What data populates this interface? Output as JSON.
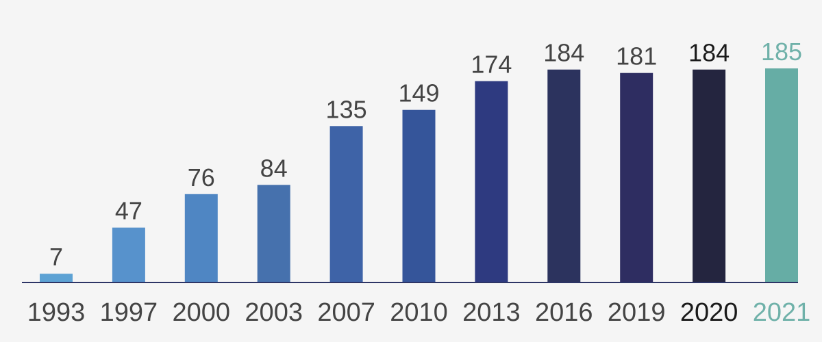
{
  "chart_data": {
    "type": "bar",
    "categories": [
      "1993",
      "1997",
      "2000",
      "2003",
      "2007",
      "2010",
      "2013",
      "2016",
      "2019",
      "2020",
      "2021"
    ],
    "values": [
      7,
      47,
      76,
      84,
      135,
      149,
      174,
      184,
      181,
      184,
      185
    ],
    "data_labels": [
      "7",
      "47",
      "76",
      "84",
      "135",
      "149",
      "174",
      "184",
      "181",
      "184",
      "185"
    ],
    "bar_colors": [
      "#5da2d4",
      "#5792cc",
      "#4f86c3",
      "#4671ad",
      "#3e63a7",
      "#35559a",
      "#2e3a80",
      "#2c335e",
      "#2e2d61",
      "#24253f",
      "#66ada5"
    ],
    "label_colors": [
      "#444444",
      "#444444",
      "#444444",
      "#444444",
      "#444444",
      "#444444",
      "#444444",
      "#444444",
      "#444444",
      "#1a1a1a",
      "#6fb1a9"
    ],
    "axis_color": "#2d3566",
    "ylim": [
      0,
      185
    ],
    "grid": false,
    "title": "",
    "xlabel": "",
    "ylabel": ""
  }
}
